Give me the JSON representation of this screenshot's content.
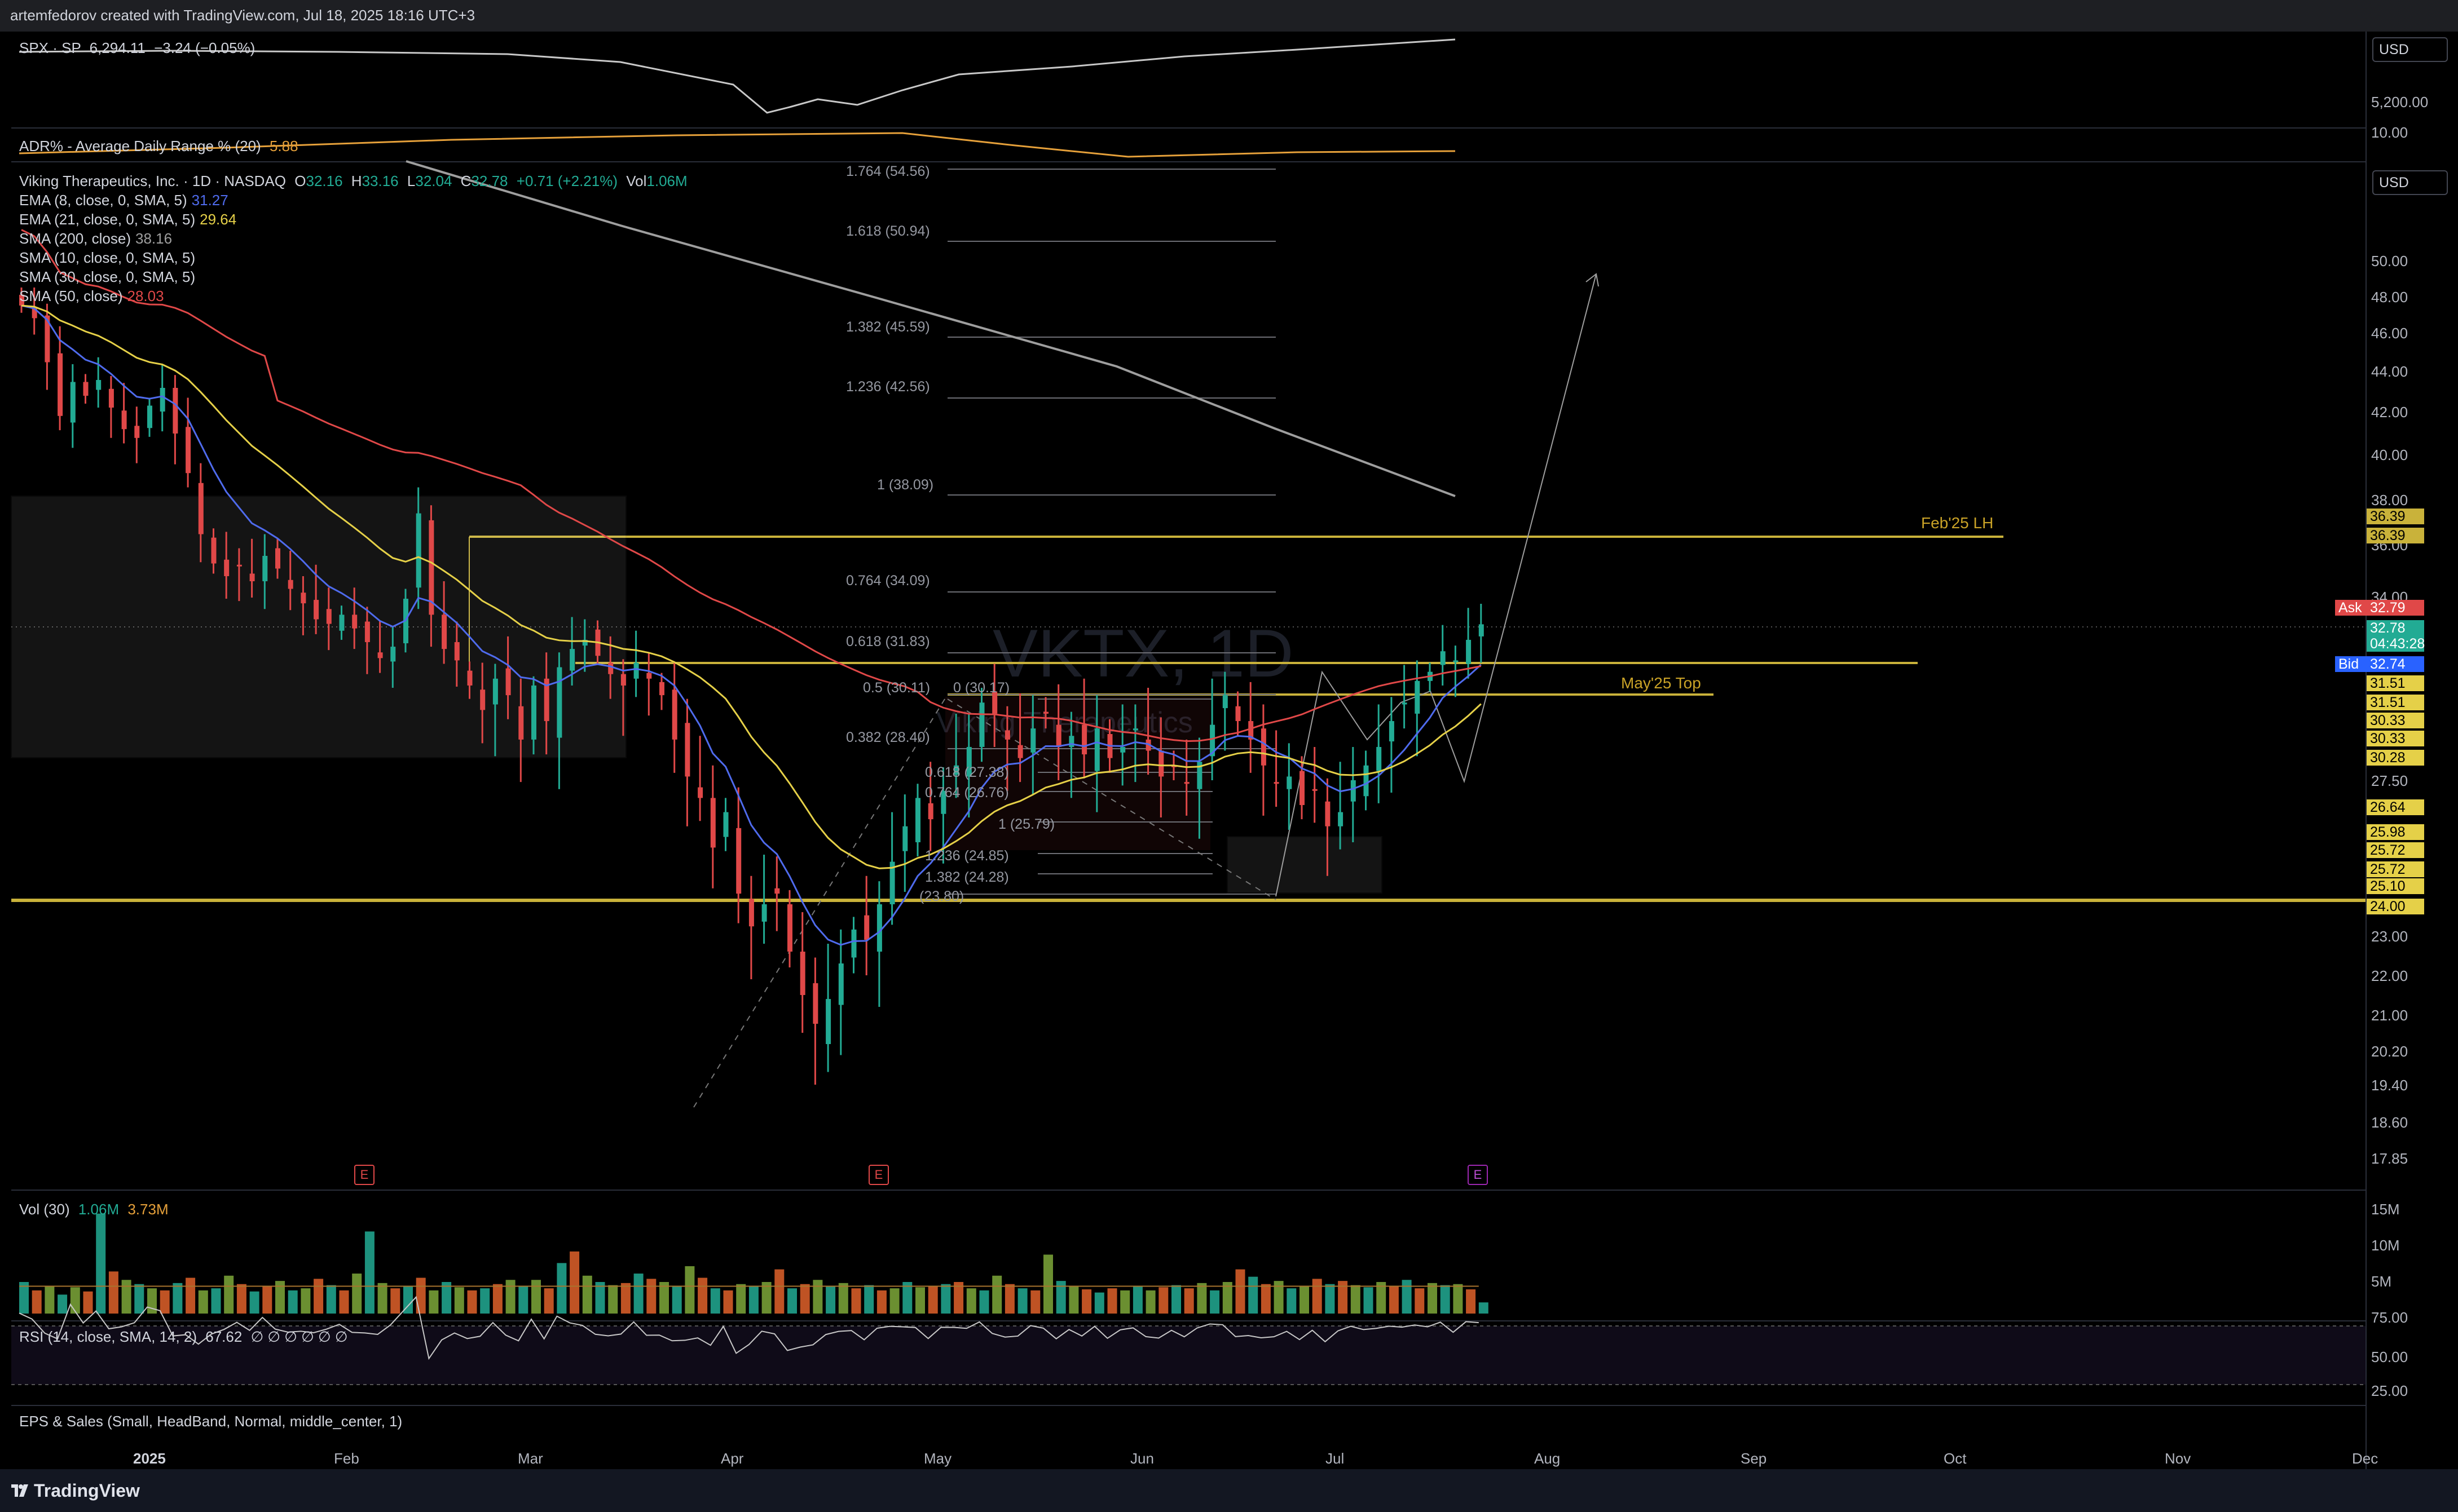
{
  "header": {
    "attribution": "artemfedorov created with TradingView.com, Jul 18, 2025 18:16 UTC+3"
  },
  "watermark": {
    "symbol": "VKTX, 1D",
    "name": "Viking Therapeutics"
  },
  "spx": {
    "name": "SPX · SP",
    "price": "6,294.11",
    "change": "−3.24 (−0.05%)"
  },
  "adr": {
    "name": "ADR% - Average Daily Range % (20)",
    "value": "5.88"
  },
  "main_legend": {
    "title": "Viking Therapeutics, Inc. · 1D · NASDAQ",
    "o_label": "O",
    "o": "32.16",
    "h_label": "H",
    "h": "33.16",
    "l_label": "L",
    "l": "32.04",
    "c_label": "C",
    "c": "32.78",
    "change": "+0.71 (+2.21%)",
    "vol_label": "Vol",
    "vol": "1.06M",
    "indicators": [
      {
        "name": "EMA (8, close, 0, SMA, 5)",
        "value": "31.27",
        "color": "#4f6bed"
      },
      {
        "name": "EMA (21, close, 0, SMA, 5)",
        "value": "29.64",
        "color": "#e5d048"
      },
      {
        "name": "SMA (200, close)",
        "value": "38.16",
        "color": "#9e9e9e"
      },
      {
        "name": "SMA (10, close, 0, SMA, 5)",
        "value": "",
        "color": "#9e9e9e"
      },
      {
        "name": "SMA (30, close, 0, SMA, 5)",
        "value": "",
        "color": "#9e9e9e"
      },
      {
        "name": "SMA (50, close)",
        "value": "28.03",
        "color": "#e04848"
      }
    ]
  },
  "fib_upper": [
    "1.764 (54.56)",
    "1.618 (50.94)",
    "1.382 (45.59)",
    "1.236 (42.56)",
    "1 (38.09)",
    "0.764 (34.09)",
    "0.618 (31.83)",
    "0.5 (30.11)",
    "0.382 (28.40)"
  ],
  "fib_lower": [
    "0 (30.17)",
    "0.618 (27.38)",
    "0.764 (26.76)",
    "1 (25.79)",
    "1.236 (24.85)",
    "1.382 (24.28)",
    "(23.80)"
  ],
  "annotations": {
    "feb": "Feb'25 LH",
    "may": "May'25 Top"
  },
  "usd": "USD",
  "top_scale": [
    "5,200.00",
    "10.00"
  ],
  "price_scale": [
    "50.00",
    "48.00",
    "46.00",
    "44.00",
    "42.00",
    "40.00",
    "38.00",
    "36.00",
    "34.00",
    "27.50",
    "23.00",
    "22.00",
    "21.00",
    "20.20",
    "19.40",
    "18.60",
    "17.85"
  ],
  "price_tags": [
    {
      "text": "36.39",
      "bg": "#c9b23a"
    },
    {
      "text": "36.39",
      "bg": "#c9b23a"
    },
    {
      "text": "Ask",
      "bg": "#e04848"
    },
    {
      "text": "32.79",
      "bg": "#e04848"
    },
    {
      "text": "32.78",
      "bg": "#22ab94"
    },
    {
      "text": "04:43:28",
      "bg": "#22ab94"
    },
    {
      "text": "Bid",
      "bg": "#2962ff"
    },
    {
      "text": "32.74",
      "bg": "#2962ff"
    },
    {
      "text": "31.51",
      "bg": "#e5d048"
    },
    {
      "text": "31.51",
      "bg": "#e5d048"
    },
    {
      "text": "30.33",
      "bg": "#e5d048"
    },
    {
      "text": "30.33",
      "bg": "#e5d048"
    },
    {
      "text": "30.28",
      "bg": "#e5d048"
    },
    {
      "text": "26.64",
      "bg": "#e5d048"
    },
    {
      "text": "25.98",
      "bg": "#e5d048"
    },
    {
      "text": "25.72",
      "bg": "#e5d048"
    },
    {
      "text": "25.72",
      "bg": "#e5d048"
    },
    {
      "text": "25.10",
      "bg": "#e5d048"
    },
    {
      "text": "24.00",
      "bg": "#e5d048"
    }
  ],
  "volume": {
    "name": "Vol (30)",
    "v1": "1.06M",
    "v2": "3.73M",
    "scale": [
      "15M",
      "10M",
      "5M"
    ]
  },
  "rsi": {
    "name": "RSI (14, close, SMA, 14, 2)",
    "value": "67.62",
    "tail": "∅ ∅ ∅ ∅ ∅ ∅",
    "scale": [
      "75.00",
      "50.00",
      "25.00"
    ]
  },
  "eps": {
    "name": "EPS & Sales (Small, HeadBand, Normal, middle_center, 1)"
  },
  "earnings": [
    "E",
    "E",
    "E"
  ],
  "time_axis": [
    "2025",
    "Feb",
    "Mar",
    "Apr",
    "May",
    "Jun",
    "Jul",
    "Aug",
    "Sep",
    "Oct",
    "Nov",
    "Dec"
  ],
  "footer": {
    "logo": "TradingView"
  },
  "colors": {
    "up": "#22ab94",
    "down": "#e04848",
    "level": "#c9b23a",
    "ema8": "#4f6bed",
    "ema21": "#e5d048",
    "sma200": "#9e9e9e"
  },
  "chart_data": {
    "type": "candlestick",
    "title": "Viking Therapeutics, Inc. · 1D · NASDAQ",
    "closes": [
      47.5,
      46.8,
      44.5,
      41.8,
      43.5,
      42.8,
      43.6,
      42.2,
      41.2,
      40.8,
      42.3,
      43.2,
      41.0,
      39.2,
      36.5,
      35.3,
      34.8,
      35.2,
      34.6,
      35.6,
      35.1,
      34.3,
      33.7,
      33.0,
      32.8,
      33.2,
      32.6,
      32.0,
      31.3,
      31.8,
      33.9,
      37.4,
      33.2,
      31.7,
      31.2,
      30.1,
      29.4,
      30.4,
      29.8,
      28.6,
      30.1,
      29.1,
      30.9,
      31.7,
      32.1,
      31.4,
      30.6,
      30.1,
      31.1,
      30.4,
      29.8,
      28.6,
      27.6,
      27.0,
      25.6,
      26.6,
      24.3,
      23.3,
      24.0,
      24.3,
      22.6,
      21.5,
      20.8,
      21.4,
      22.3,
      23.2,
      22.9,
      24.0,
      25.2,
      26.2,
      27.0,
      26.4,
      27.2,
      27.9,
      28.4,
      29.6,
      29.3,
      28.6,
      28.1,
      28.9,
      29.3,
      28.4,
      28.7,
      28.2,
      28.9,
      28.1,
      28.4,
      28.9,
      28.3,
      27.6,
      27.9,
      27.4,
      28.0,
      29.0,
      29.8,
      29.1,
      28.6,
      27.9,
      27.4,
      27.6,
      26.8,
      27.2,
      26.2,
      26.6,
      27.5,
      27.9,
      28.4,
      29.1,
      29.6,
      30.3,
      30.7,
      31.6,
      31.2,
      32.1,
      32.78
    ],
    "volume_millions": [
      3.0,
      2.2,
      2.6,
      1.8,
      2.5,
      2.1,
      9.5,
      4.0,
      3.2,
      2.8,
      2.4,
      2.2,
      2.9,
      3.4,
      2.2,
      2.4,
      3.6,
      2.8,
      2.1,
      2.6,
      3.1,
      2.2,
      2.4,
      3.3,
      2.7,
      2.2,
      3.8,
      7.8,
      2.9,
      2.4,
      2.6,
      3.4,
      2.2,
      3.0,
      2.5,
      2.2,
      2.4,
      2.8,
      3.2,
      2.6,
      3.2,
      2.4,
      4.8,
      5.9,
      3.6,
      3.0,
      2.7,
      2.9,
      3.8,
      3.3,
      3.0,
      2.6,
      4.5,
      3.4,
      2.4,
      2.2,
      2.8,
      2.6,
      3.0,
      4.2,
      2.4,
      2.8,
      3.2,
      2.6,
      2.9,
      2.4,
      2.7,
      2.2,
      2.4,
      3.0,
      2.5,
      2.6,
      2.8,
      3.0,
      2.4,
      2.2,
      3.6,
      2.8,
      2.4,
      2.2,
      5.6,
      3.1,
      2.6,
      2.3,
      2.0,
      2.4,
      2.2,
      2.6,
      2.2,
      2.5,
      2.7,
      2.4,
      2.9,
      2.2,
      3.0,
      4.2,
      3.5,
      2.8,
      3.1,
      2.4,
      2.6,
      3.3,
      2.8,
      3.1,
      2.7,
      2.5,
      3.0,
      2.6,
      3.2,
      2.4,
      2.9,
      2.7,
      2.8,
      2.3,
      1.06
    ],
    "ema8_last": 31.27,
    "ema21_last": 29.64,
    "sma200_last": 38.16,
    "sma50_last": 28.03,
    "levels": {
      "Feb'25 LH": 36.39,
      "May'25 Top": 31.51,
      "support": 24.0
    },
    "y_range": [
      17.85,
      50.0
    ],
    "x_range": [
      "2025",
      "Dec"
    ]
  }
}
